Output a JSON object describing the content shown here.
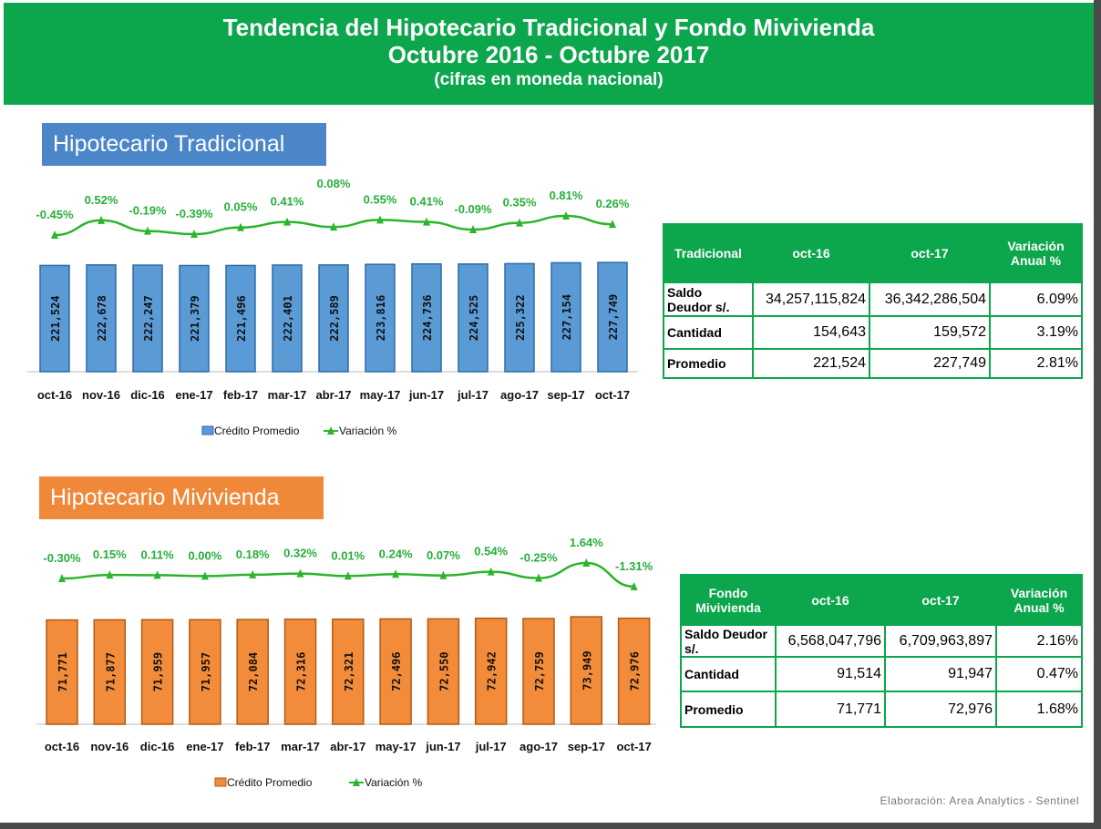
{
  "header": {
    "title_line1": "Tendencia del Hipotecario Tradicional y Fondo  Mivivienda",
    "title_line2": "Octubre 2016 - Octubre 2017",
    "subtitle": "(cifras en moneda nacional)",
    "color": "#0ca64c"
  },
  "chart_data": [
    {
      "type": "bar+line",
      "title": "Hipotecario Tradicional",
      "title_color": "#4a86c8",
      "categories": [
        "oct-16",
        "nov-16",
        "dic-16",
        "ene-17",
        "feb-17",
        "mar-17",
        "abr-17",
        "may-17",
        "jun-17",
        "jul-17",
        "ago-17",
        "sep-17",
        "oct-17"
      ],
      "series": [
        {
          "name": "Crédito Promedio",
          "type": "bar",
          "color": "#5b9bd5",
          "values": [
            221524,
            222678,
            222247,
            221379,
            221496,
            222401,
            222589,
            223816,
            224736,
            224525,
            225322,
            227154,
            227749
          ],
          "labels": [
            "221,524",
            "222,678",
            "222,247",
            "221,379",
            "221,496",
            "222,401",
            "222,589",
            "223,816",
            "224,736",
            "224,525",
            "225,322",
            "227,154",
            "227,749"
          ]
        },
        {
          "name": "Variación %",
          "type": "line",
          "color": "#2bb52b",
          "values": [
            -0.45,
            0.52,
            -0.19,
            -0.39,
            0.05,
            0.41,
            0.08,
            0.55,
            0.41,
            -0.09,
            0.35,
            0.81,
            0.26
          ],
          "labels": [
            "-0.45%",
            "0.52%",
            "-0.19%",
            "-0.39%",
            "0.05%",
            "0.41%",
            "0.08%",
            "0.55%",
            "0.41%",
            "-0.09%",
            "0.35%",
            "0.81%",
            "0.26%"
          ]
        }
      ],
      "legend": "bottom"
    },
    {
      "type": "bar+line",
      "title": "Hipotecario Mivivienda",
      "title_color": "#f0883a",
      "categories": [
        "oct-16",
        "nov-16",
        "dic-16",
        "ene-17",
        "feb-17",
        "mar-17",
        "abr-17",
        "may-17",
        "jun-17",
        "jul-17",
        "ago-17",
        "sep-17",
        "oct-17"
      ],
      "series": [
        {
          "name": "Crédito Promedio",
          "type": "bar",
          "color": "#f28c3a",
          "values": [
            71771,
            71877,
            71959,
            71957,
            72084,
            72316,
            72321,
            72496,
            72550,
            72942,
            72759,
            73949,
            72976
          ],
          "labels": [
            "71,771",
            "71,877",
            "71,959",
            "71,957",
            "72,084",
            "72,316",
            "72,321",
            "72,496",
            "72,550",
            "72,942",
            "72,759",
            "73,949",
            "72,976"
          ]
        },
        {
          "name": "Variación %",
          "type": "line",
          "color": "#2bb52b",
          "values": [
            -0.3,
            0.15,
            0.11,
            0.0,
            0.18,
            0.32,
            0.01,
            0.24,
            0.07,
            0.54,
            -0.25,
            1.64,
            -1.31
          ],
          "labels": [
            "-0.30%",
            "0.15%",
            "0.11%",
            "0.00%",
            "0.18%",
            "0.32%",
            "0.01%",
            "0.24%",
            "0.07%",
            "0.54%",
            "-0.25%",
            "1.64%",
            "-1.31%"
          ]
        }
      ],
      "legend": "bottom"
    }
  ],
  "table_tradicional": {
    "headers": [
      "Tradicional",
      "oct-16",
      "oct-17",
      "Variación Anual %"
    ],
    "rows": [
      [
        "Saldo Deudor s/.",
        "34,257,115,824",
        "36,342,286,504",
        "6.09%"
      ],
      [
        "Cantidad",
        "154,643",
        "159,572",
        "3.19%"
      ],
      [
        "Promedio",
        "221,524",
        "227,749",
        "2.81%"
      ]
    ]
  },
  "table_mivivienda": {
    "headers": [
      "Fondo Mivivienda",
      "oct-16",
      "oct-17",
      "Variación Anual %"
    ],
    "rows": [
      [
        "Saldo Deudor s/.",
        "6,568,047,796",
        "6,709,963,897",
        "2.16%"
      ],
      [
        "Cantidad",
        "91,514",
        "91,947",
        "0.47%"
      ],
      [
        "Promedio",
        "71,771",
        "72,976",
        "1.68%"
      ]
    ]
  },
  "footer": "Elaboración: Area Analytics - Sentinel"
}
